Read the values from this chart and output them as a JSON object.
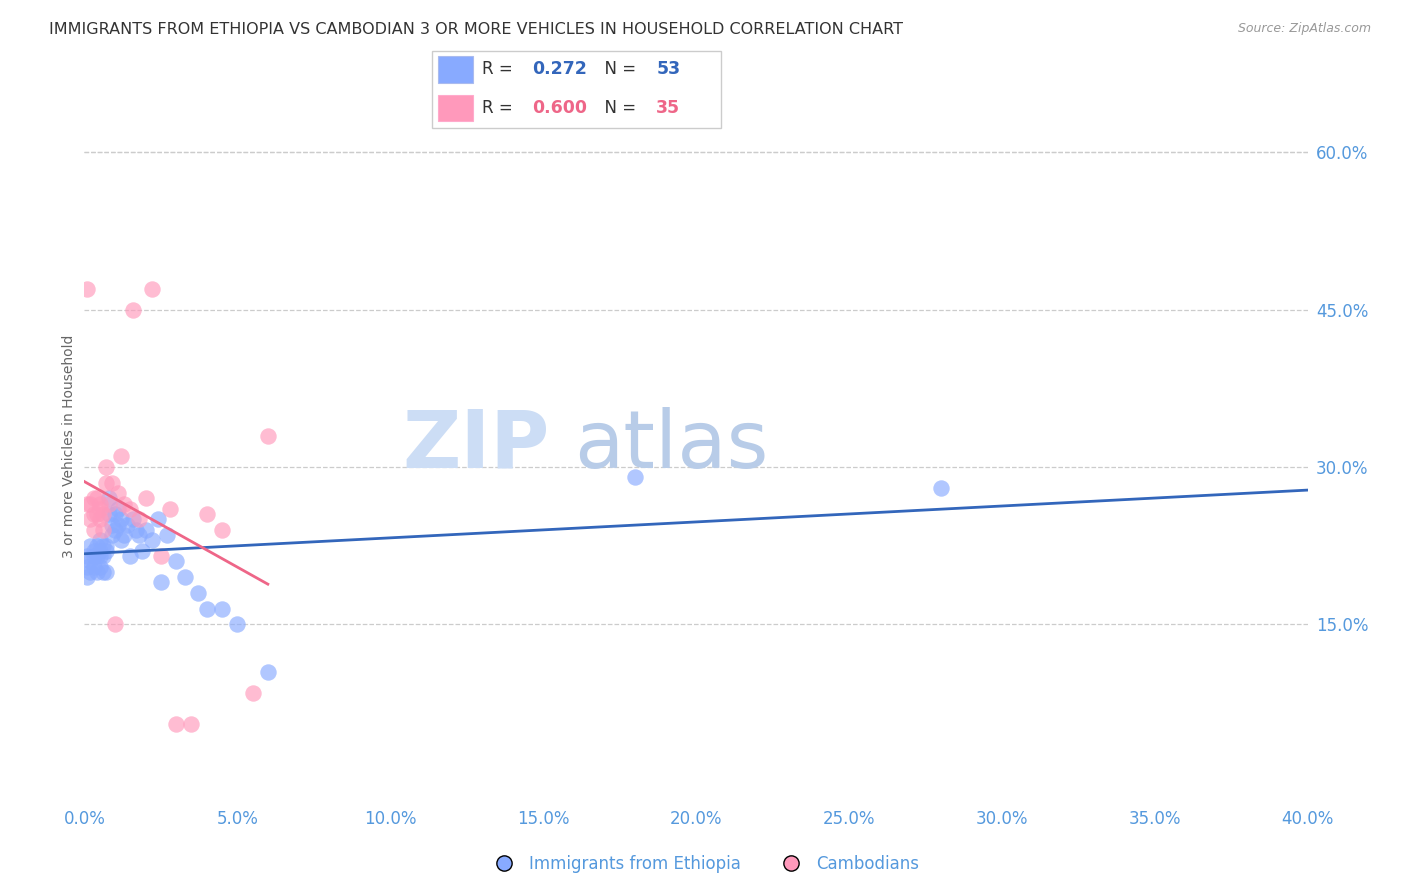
{
  "title": "IMMIGRANTS FROM ETHIOPIA VS CAMBODIAN 3 OR MORE VEHICLES IN HOUSEHOLD CORRELATION CHART",
  "source": "Source: ZipAtlas.com",
  "ylabel": "3 or more Vehicles in Household",
  "xlim": [
    0.0,
    0.4
  ],
  "ylim": [
    -0.02,
    0.66
  ],
  "xticks": [
    0.0,
    0.05,
    0.1,
    0.15,
    0.2,
    0.25,
    0.3,
    0.35,
    0.4
  ],
  "yticks_right": [
    0.15,
    0.3,
    0.45,
    0.6
  ],
  "legend_labels": [
    "Immigrants from Ethiopia",
    "Cambodians"
  ],
  "legend_R": [
    0.272,
    0.6
  ],
  "legend_N": [
    53,
    35
  ],
  "blue_dot_color": "#88AAFF",
  "pink_dot_color": "#FF99BB",
  "blue_line_color": "#3366BB",
  "pink_line_color": "#EE6688",
  "axis_label_color": "#5599DD",
  "title_color": "#333333",
  "ethiopia_x": [
    0.001,
    0.001,
    0.001,
    0.002,
    0.002,
    0.002,
    0.003,
    0.003,
    0.003,
    0.004,
    0.004,
    0.004,
    0.005,
    0.005,
    0.005,
    0.005,
    0.006,
    0.006,
    0.006,
    0.007,
    0.007,
    0.007,
    0.008,
    0.008,
    0.009,
    0.009,
    0.01,
    0.01,
    0.011,
    0.011,
    0.012,
    0.012,
    0.013,
    0.014,
    0.015,
    0.016,
    0.017,
    0.018,
    0.019,
    0.02,
    0.022,
    0.024,
    0.025,
    0.027,
    0.03,
    0.033,
    0.037,
    0.04,
    0.045,
    0.05,
    0.06,
    0.18,
    0.28
  ],
  "ethiopia_y": [
    0.215,
    0.205,
    0.195,
    0.225,
    0.21,
    0.2,
    0.22,
    0.215,
    0.205,
    0.225,
    0.215,
    0.2,
    0.23,
    0.22,
    0.215,
    0.205,
    0.225,
    0.215,
    0.2,
    0.225,
    0.22,
    0.2,
    0.27,
    0.255,
    0.245,
    0.235,
    0.255,
    0.24,
    0.26,
    0.245,
    0.25,
    0.23,
    0.235,
    0.245,
    0.215,
    0.25,
    0.24,
    0.235,
    0.22,
    0.24,
    0.23,
    0.25,
    0.19,
    0.235,
    0.21,
    0.195,
    0.18,
    0.165,
    0.165,
    0.15,
    0.105,
    0.29,
    0.28
  ],
  "cambodian_x": [
    0.001,
    0.001,
    0.002,
    0.002,
    0.003,
    0.003,
    0.003,
    0.004,
    0.004,
    0.005,
    0.005,
    0.005,
    0.006,
    0.006,
    0.007,
    0.007,
    0.008,
    0.009,
    0.01,
    0.011,
    0.012,
    0.013,
    0.015,
    0.016,
    0.018,
    0.02,
    0.022,
    0.025,
    0.028,
    0.03,
    0.035,
    0.04,
    0.045,
    0.055,
    0.06
  ],
  "cambodian_y": [
    0.47,
    0.265,
    0.265,
    0.25,
    0.27,
    0.255,
    0.24,
    0.27,
    0.255,
    0.265,
    0.26,
    0.25,
    0.255,
    0.24,
    0.3,
    0.285,
    0.265,
    0.285,
    0.15,
    0.275,
    0.31,
    0.265,
    0.26,
    0.45,
    0.25,
    0.27,
    0.47,
    0.215,
    0.26,
    0.055,
    0.055,
    0.255,
    0.24,
    0.085,
    0.33
  ]
}
